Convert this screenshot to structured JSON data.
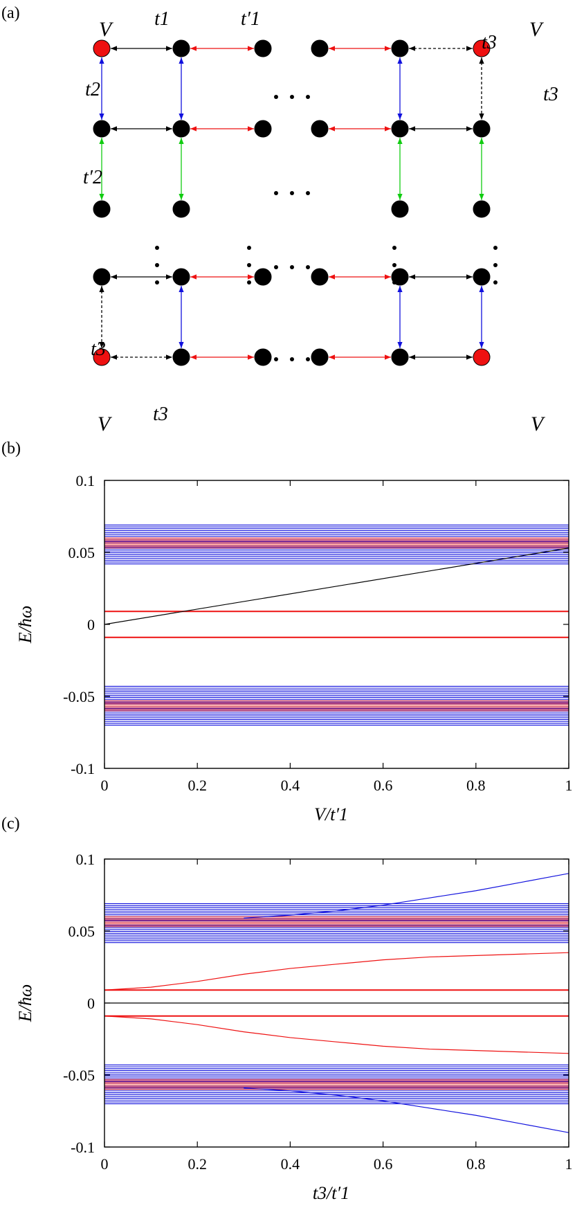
{
  "figure": {
    "panel_a": {
      "label": "(a)",
      "lattice": {
        "symbols": {
          "V": "V",
          "t1": "t1",
          "t1p": "t′1",
          "t2": "t2",
          "t2p": "t′2",
          "t3": "t3"
        },
        "ellipsis": "· · ·",
        "colors": {
          "site": "#000000",
          "corner_site": "#ee1111",
          "t1_link": "#000000",
          "t1p_link": "#ee1111",
          "t2_link": "#1111dd",
          "t2p_link": "#11cc11",
          "t3_link": "#000000"
        }
      }
    }
  },
  "chart_data": [
    {
      "panel": "(b)",
      "type": "line",
      "xlabel": "V/t′1",
      "ylabel": "E/ħω",
      "xlim": [
        0,
        1
      ],
      "ylim": [
        -0.1,
        0.1
      ],
      "xticks": [
        0,
        0.2,
        0.4,
        0.6,
        0.8,
        1
      ],
      "xtick_labels": [
        "0",
        "0.2",
        "0.4",
        "0.6",
        "0.8",
        "1"
      ],
      "yticks": [
        -0.1,
        -0.05,
        0,
        0.05,
        0.1
      ],
      "ytick_labels": [
        "-0.1",
        "-0.05",
        "0",
        "0.05",
        "0.1"
      ],
      "grid": false,
      "bands": [
        {
          "color": "#1111dd",
          "y_range": [
            0.042,
            0.069
          ],
          "n_lines": 22
        },
        {
          "color": "#ee4444",
          "y_range": [
            0.053,
            0.06
          ],
          "n_lines": 8
        },
        {
          "color": "#1111dd",
          "y_range": [
            -0.07,
            -0.043
          ],
          "n_lines": 22
        },
        {
          "color": "#ee4444",
          "y_range": [
            -0.06,
            -0.053
          ],
          "n_lines": 8
        }
      ],
      "series": [
        {
          "color": "#ee1111",
          "x": [
            0,
            1
          ],
          "y": [
            0.009,
            0.009
          ]
        },
        {
          "color": "#ee1111",
          "x": [
            0,
            1
          ],
          "y": [
            -0.009,
            -0.009
          ]
        },
        {
          "color": "#000000",
          "x": [
            0,
            1
          ],
          "y": [
            0.0,
            0.053
          ]
        }
      ]
    },
    {
      "panel": "(c)",
      "type": "line",
      "xlabel": "t3/t′1",
      "ylabel": "E/ħω",
      "xlim": [
        0,
        1
      ],
      "ylim": [
        -0.1,
        0.1
      ],
      "xticks": [
        0,
        0.2,
        0.4,
        0.6,
        0.8,
        1
      ],
      "xtick_labels": [
        "0",
        "0.2",
        "0.4",
        "0.6",
        "0.8",
        "1"
      ],
      "yticks": [
        -0.1,
        -0.05,
        0,
        0.05,
        0.1
      ],
      "ytick_labels": [
        "-0.1",
        "-0.05",
        "0",
        "0.05",
        "0.1"
      ],
      "grid": false,
      "bands": [
        {
          "color": "#1111dd",
          "y_range": [
            0.042,
            0.069
          ],
          "n_lines": 22
        },
        {
          "color": "#ee4444",
          "y_range": [
            0.053,
            0.06
          ],
          "n_lines": 8
        },
        {
          "color": "#1111dd",
          "y_range": [
            -0.07,
            -0.043
          ],
          "n_lines": 22
        },
        {
          "color": "#ee4444",
          "y_range": [
            -0.06,
            -0.053
          ],
          "n_lines": 8
        }
      ],
      "series": [
        {
          "color": "#ee1111",
          "x": [
            0,
            1
          ],
          "y": [
            0.009,
            0.009
          ]
        },
        {
          "color": "#ee1111",
          "x": [
            0,
            1
          ],
          "y": [
            -0.009,
            -0.009
          ]
        },
        {
          "color": "#000000",
          "x": [
            0,
            1
          ],
          "y": [
            0.0,
            0.0
          ]
        },
        {
          "color": "#ee1111",
          "x": [
            0,
            0.1,
            0.2,
            0.3,
            0.4,
            0.5,
            0.6,
            0.7,
            0.8,
            0.9,
            1.0
          ],
          "y": [
            0.009,
            0.011,
            0.015,
            0.02,
            0.024,
            0.027,
            0.03,
            0.032,
            0.033,
            0.034,
            0.035
          ]
        },
        {
          "color": "#ee1111",
          "x": [
            0,
            0.1,
            0.2,
            0.3,
            0.4,
            0.5,
            0.6,
            0.7,
            0.8,
            0.9,
            1.0
          ],
          "y": [
            -0.009,
            -0.011,
            -0.015,
            -0.02,
            -0.024,
            -0.027,
            -0.03,
            -0.032,
            -0.033,
            -0.034,
            -0.035
          ]
        },
        {
          "color": "#1111dd",
          "x": [
            0.3,
            0.4,
            0.5,
            0.6,
            0.7,
            0.8,
            0.9,
            1.0
          ],
          "y": [
            0.059,
            0.061,
            0.064,
            0.068,
            0.073,
            0.078,
            0.084,
            0.09
          ]
        },
        {
          "color": "#1111dd",
          "x": [
            0.3,
            0.4,
            0.5,
            0.6,
            0.7,
            0.8,
            0.9,
            1.0
          ],
          "y": [
            -0.059,
            -0.061,
            -0.064,
            -0.068,
            -0.073,
            -0.078,
            -0.084,
            -0.09
          ]
        }
      ]
    }
  ]
}
